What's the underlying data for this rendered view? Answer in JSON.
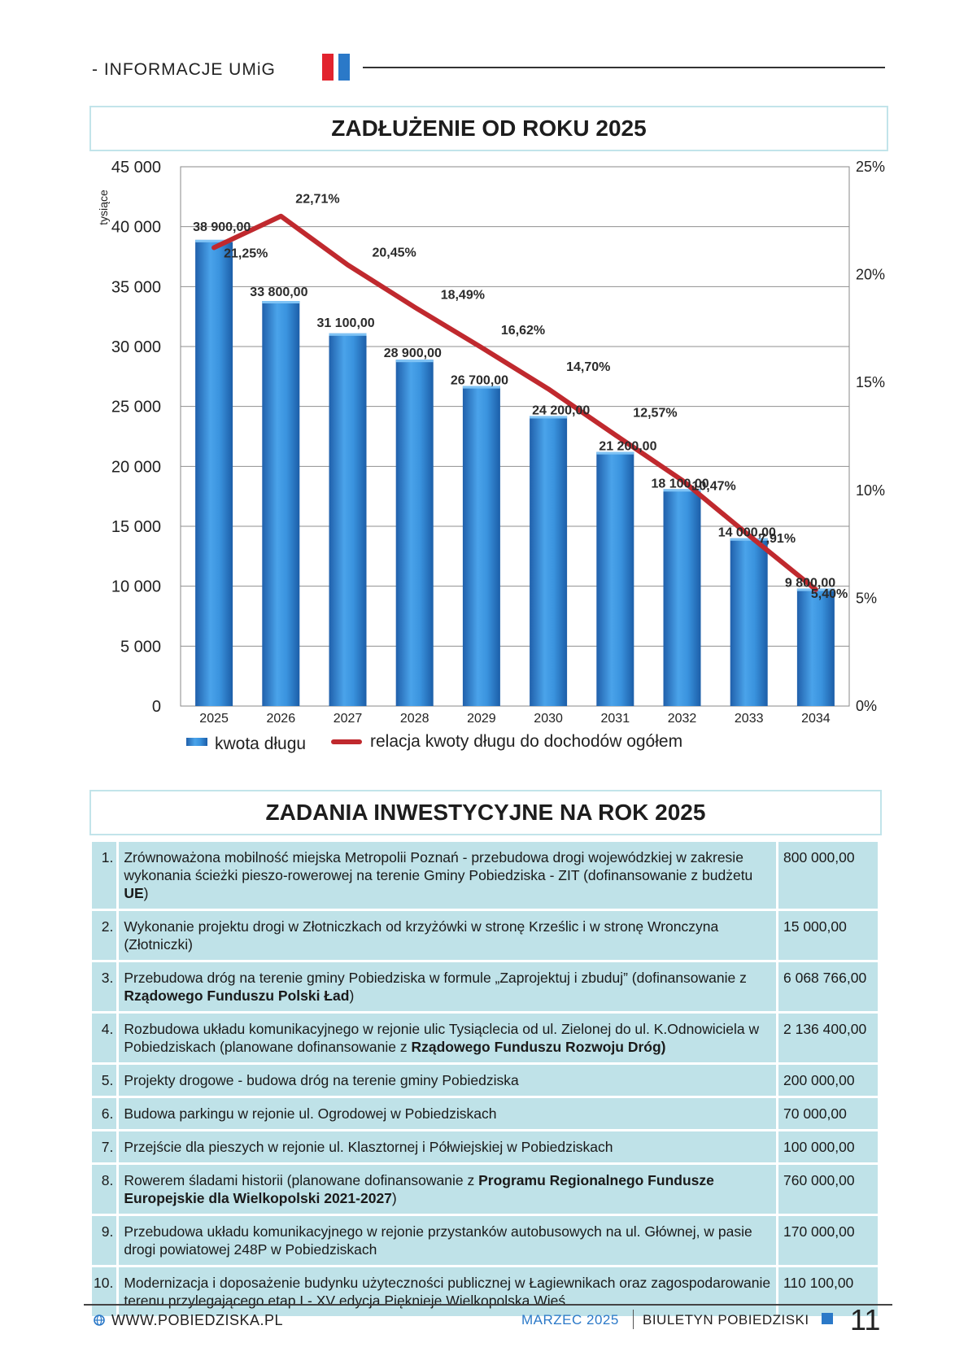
{
  "header": {
    "section_label": "- INFORMACJE UMiG"
  },
  "chart_title": "ZADŁUŻENIE OD ROKU 2025",
  "chart_data": {
    "type": "bar",
    "title": "ZADŁUŻENIE OD ROKU 2025",
    "ylabel": "tysiące",
    "xlabel": "",
    "categories": [
      "2025",
      "2026",
      "2027",
      "2028",
      "2029",
      "2030",
      "2031",
      "2032",
      "2033",
      "2034"
    ],
    "ylim": [
      0,
      45000
    ],
    "y2lim": [
      0,
      25
    ],
    "y_ticks": [
      "0",
      "5 000",
      "10 000",
      "15 000",
      "20 000",
      "25 000",
      "30 000",
      "35 000",
      "40 000",
      "45 000"
    ],
    "y2_ticks": [
      "0%",
      "5%",
      "10%",
      "15%",
      "20%",
      "25%"
    ],
    "grid": true,
    "legend": "bottom",
    "series": [
      {
        "name": "kwota długu",
        "type": "bar",
        "axis": "left",
        "values": [
          38900,
          33800,
          31100,
          28900,
          26700,
          24200,
          21200,
          18100,
          14000,
          9800
        ],
        "labels": [
          "38 900,00",
          "33 800,00",
          "31 100,00",
          "28 900,00",
          "26 700,00",
          "24 200,00",
          "21 200,00",
          "18 100,00",
          "14 000,00",
          "9 800,00"
        ],
        "color": "#2e86d4"
      },
      {
        "name": "relacja kwoty długu do dochodów ogółem",
        "type": "line",
        "axis": "right",
        "values": [
          21.25,
          22.71,
          20.45,
          18.49,
          16.62,
          14.7,
          12.57,
          10.47,
          7.91,
          5.4
        ],
        "labels": [
          "21,25%",
          "22,71%",
          "20,45%",
          "18,49%",
          "16,62%",
          "14,70%",
          "12,57%",
          "10,47%",
          "7,91%",
          "5,40%"
        ],
        "color": "#c0292e"
      }
    ]
  },
  "table_title": "ZADANIA INWESTYCYJNE NA ROK 2025",
  "tasks": [
    {
      "num": "1.",
      "amount": "800 000,00",
      "parts": [
        {
          "t": "Zrównoważona mobilność miejska Metropolii Poznań - przebudowa drogi wojewódzkiej w zakresie wykonania ścieżki pieszo-rowerowej na terenie Gminy Pobiedziska - ZIT (dofinansowanie z budżetu "
        },
        {
          "t": "UE",
          "b": true
        },
        {
          "t": ")"
        }
      ]
    },
    {
      "num": "2.",
      "amount": "15 000,00",
      "parts": [
        {
          "t": "Wykonanie projektu drogi w Złotniczkach od krzyżówki w stronę Krześlic i w stronę Wronczyna (Złotniczki)"
        }
      ]
    },
    {
      "num": "3.",
      "amount": "6 068 766,00",
      "parts": [
        {
          "t": "Przebudowa dróg na terenie gminy Pobiedziska w formule „Zaprojektuj i zbuduj” (dofinansowanie z "
        },
        {
          "t": "Rządowego Funduszu Polski Ład",
          "b": true
        },
        {
          "t": ")"
        }
      ]
    },
    {
      "num": "4.",
      "amount": "2 136 400,00",
      "parts": [
        {
          "t": "Rozbudowa układu komunikacyjnego w rejonie ulic Tysiąclecia od ul. Zielonej do ul. K.Odnowiciela w Pobiedziskach (planowane dofinansowanie z "
        },
        {
          "t": "Rządowego Funduszu Rozwoju Dróg)",
          "b": true
        }
      ]
    },
    {
      "num": "5.",
      "amount": "200 000,00",
      "parts": [
        {
          "t": "Projekty drogowe - budowa dróg na terenie gminy Pobiedziska"
        }
      ]
    },
    {
      "num": "6.",
      "amount": "70 000,00",
      "parts": [
        {
          "t": "Budowa parkingu w rejonie ul. Ogrodowej w Pobiedziskach"
        }
      ]
    },
    {
      "num": "7.",
      "amount": "100 000,00",
      "parts": [
        {
          "t": "Przejście dla pieszych w rejonie ul. Klasztornej i Półwiejskiej w Pobiedziskach"
        }
      ]
    },
    {
      "num": "8.",
      "amount": "760 000,00",
      "parts": [
        {
          "t": "Rowerem śladami historii (planowane dofinansowanie z "
        },
        {
          "t": "Programu Regionalnego Fundusze Europejskie dla Wielkopolski 2021-2027",
          "b": true
        },
        {
          "t": ")"
        }
      ]
    },
    {
      "num": "9.",
      "amount": "170 000,00",
      "parts": [
        {
          "t": "Przebudowa układu komunikacyjnego w rejonie przystanków autobusowych na ul. Głównej, w pasie drogi powiatowej 248P w Pobiedziskach"
        }
      ]
    },
    {
      "num": "10.",
      "amount": "110 100,00",
      "parts": [
        {
          "t": "Modernizacja i doposażenie budynku użyteczności publicznej w Łagiewnikach oraz zagospodarowanie terenu przylegającego etap I - XV edycja Pięknieje Wielkopolska Wieś"
        }
      ]
    }
  ],
  "footer": {
    "website": "WWW.POBIEDZISKA.PL",
    "month": "MARZEC 2025",
    "bulletin": "BIULETYN POBIEDZISKI",
    "page_number": "11"
  },
  "icons": {
    "website": "globe-icon"
  }
}
